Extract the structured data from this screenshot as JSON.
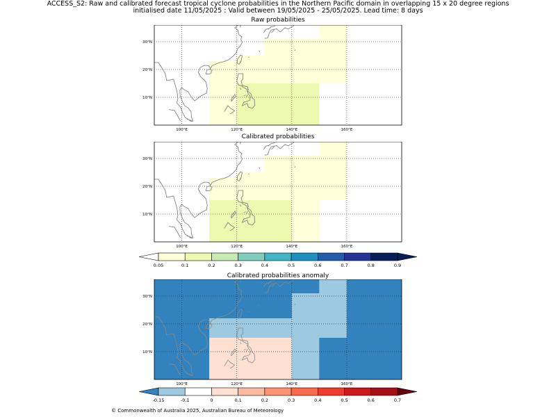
{
  "header": {
    "title_line1": "ACCESS_S2: Raw and calibrated forecast tropical cyclone probabilities in the Northern Pacific domain in overlapping 15 x 20 degree regions",
    "title_line2": "initialised date 11/05/2025 :  Valid between 19/05/2025 - 25/05/2025. Lead time: 8 days"
  },
  "panels": [
    {
      "id": "raw",
      "title": "Raw probabilities"
    },
    {
      "id": "calibrated",
      "title": "Calibrated probabilities"
    },
    {
      "id": "anomaly",
      "title": "Calibrated probabilities anomaly"
    }
  ],
  "map_axes": {
    "lon_range": [
      90,
      180
    ],
    "lat_range": [
      0,
      36
    ],
    "lon_ticks": [
      {
        "v": 100,
        "label": "100°E"
      },
      {
        "v": 120,
        "label": "120°E"
      },
      {
        "v": 140,
        "label": "140°E"
      },
      {
        "v": 160,
        "label": "160°E"
      }
    ],
    "lat_ticks": [
      {
        "v": 10,
        "label": "10°N"
      },
      {
        "v": 20,
        "label": "20°N"
      },
      {
        "v": 30,
        "label": "30°N"
      }
    ],
    "grid": "dotted"
  },
  "prob_colorbar": {
    "ticks": [
      "0.05",
      "0.1",
      "0.2",
      "0.3",
      "0.4",
      "0.5",
      "0.6",
      "0.7",
      "0.8",
      "0.9"
    ],
    "colors": [
      "#ffffd9",
      "#edf8b1",
      "#c7e9b4",
      "#7fcdbb",
      "#41b6c4",
      "#1d91c0",
      "#225ea8",
      "#253494",
      "#081d58"
    ],
    "under_color": "#ffffff",
    "over_color": "#081d58"
  },
  "anom_colorbar": {
    "ticks": [
      "-0.15",
      "-0.1",
      "0",
      "0.1",
      "0.2",
      "0.3",
      "0.4",
      "0.5",
      "0.6",
      "0.7"
    ],
    "colors": [
      "#9ecae1",
      "#ffffff",
      "#fee0d2",
      "#fcbba1",
      "#fc9272",
      "#fb6a4a",
      "#ef3b2c",
      "#cb181d",
      "#a50f15"
    ],
    "under_color": "#3182bd",
    "over_color": "#67000d"
  },
  "map_data": {
    "raw": {
      "background": "#ffffff",
      "cells": [
        {
          "lon": [
            110,
            150
          ],
          "lat": [
            0,
            23
          ],
          "value": 0.07
        },
        {
          "lon": [
            120,
            130
          ],
          "lat": [
            23,
            25
          ],
          "value": 0.07
        },
        {
          "lon": [
            130,
            150
          ],
          "lat": [
            23,
            31
          ],
          "value": 0.07
        },
        {
          "lon": [
            140,
            160
          ],
          "lat": [
            15,
            31
          ],
          "value": 0.07
        },
        {
          "lon": [
            150,
            160
          ],
          "lat": [
            31,
            36
          ],
          "value": 0.07
        },
        {
          "lon": [
            120,
            150
          ],
          "lat": [
            0,
            15
          ],
          "value": 0.12
        }
      ]
    },
    "calibrated": {
      "background": "#ffffff",
      "cells": [
        {
          "lon": [
            110,
            150
          ],
          "lat": [
            0,
            23
          ],
          "value": 0.07
        },
        {
          "lon": [
            120,
            130
          ],
          "lat": [
            23,
            25
          ],
          "value": 0.07
        },
        {
          "lon": [
            130,
            150
          ],
          "lat": [
            23,
            31
          ],
          "value": 0.07
        },
        {
          "lon": [
            140,
            160
          ],
          "lat": [
            15,
            31
          ],
          "value": 0.07
        },
        {
          "lon": [
            150,
            160
          ],
          "lat": [
            31,
            36
          ],
          "value": 0.07
        },
        {
          "lon": [
            110,
            140
          ],
          "lat": [
            0,
            15
          ],
          "value": 0.12
        }
      ]
    },
    "anomaly": {
      "background": "#3182bd",
      "cells": [
        {
          "lon": [
            110,
            160
          ],
          "lat": [
            15,
            22
          ],
          "value": -0.12
        },
        {
          "lon": [
            140,
            160
          ],
          "lat": [
            22,
            31
          ],
          "value": -0.12
        },
        {
          "lon": [
            150,
            160
          ],
          "lat": [
            31,
            36
          ],
          "value": -0.12
        },
        {
          "lon": [
            140,
            150
          ],
          "lat": [
            0,
            15
          ],
          "value": -0.12
        },
        {
          "lon": [
            110,
            140
          ],
          "lat": [
            0,
            15
          ],
          "value": 0
        }
      ]
    }
  },
  "footer": {
    "copyright": "© Commonwealth of Australia 2025, Australian Bureau of Meteorology"
  }
}
